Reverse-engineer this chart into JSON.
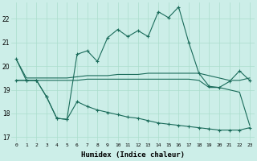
{
  "xlabel": "Humidex (Indice chaleur)",
  "bg_color": "#cceee8",
  "grid_color": "#aaddcc",
  "line_color": "#1a6b5a",
  "xlim": [
    -0.5,
    23.5
  ],
  "ylim": [
    16.8,
    22.7
  ],
  "yticks": [
    17,
    18,
    19,
    20,
    21,
    22
  ],
  "xticks": [
    0,
    1,
    2,
    3,
    4,
    5,
    6,
    7,
    8,
    9,
    10,
    11,
    12,
    13,
    14,
    15,
    16,
    17,
    18,
    19,
    20,
    21,
    22,
    23
  ],
  "line1_x": [
    0,
    1,
    2,
    3,
    4,
    5,
    6,
    7,
    8,
    9,
    10,
    11,
    12,
    13,
    14,
    15,
    16,
    17,
    18,
    19,
    20,
    21,
    22,
    23
  ],
  "line1_y": [
    20.3,
    19.4,
    19.4,
    18.7,
    17.8,
    17.75,
    20.5,
    20.65,
    20.2,
    21.2,
    21.55,
    21.25,
    21.5,
    21.25,
    22.3,
    22.05,
    22.5,
    21.0,
    19.7,
    19.15,
    19.1,
    19.35,
    19.8,
    19.4
  ],
  "line2_x": [
    0,
    1,
    2,
    3,
    4,
    5,
    6,
    7,
    8,
    9,
    10,
    11,
    12,
    13,
    14,
    15,
    16,
    17,
    18,
    19,
    20,
    21,
    22,
    23
  ],
  "line2_y": [
    20.3,
    19.5,
    19.5,
    19.5,
    19.5,
    19.5,
    19.55,
    19.6,
    19.6,
    19.6,
    19.65,
    19.65,
    19.65,
    19.7,
    19.7,
    19.7,
    19.7,
    19.7,
    19.7,
    19.6,
    19.5,
    19.4,
    19.4,
    19.5
  ],
  "line3_x": [
    0,
    1,
    2,
    3,
    4,
    5,
    6,
    7,
    8,
    9,
    10,
    11,
    12,
    13,
    14,
    15,
    16,
    17,
    18,
    19,
    20,
    21,
    22,
    23
  ],
  "line3_y": [
    19.4,
    19.4,
    19.4,
    19.4,
    19.4,
    19.4,
    19.4,
    19.45,
    19.45,
    19.45,
    19.45,
    19.45,
    19.45,
    19.45,
    19.45,
    19.45,
    19.45,
    19.45,
    19.4,
    19.1,
    19.1,
    19.0,
    18.9,
    17.5
  ],
  "line4_x": [
    0,
    1,
    2,
    3,
    4,
    5,
    6,
    7,
    8,
    9,
    10,
    11,
    12,
    13,
    14,
    15,
    16,
    17,
    18,
    19,
    20,
    21,
    22,
    23
  ],
  "line4_y": [
    19.4,
    19.4,
    19.4,
    18.7,
    17.8,
    17.75,
    18.5,
    18.3,
    18.15,
    18.05,
    17.95,
    17.85,
    17.8,
    17.7,
    17.6,
    17.55,
    17.5,
    17.45,
    17.4,
    17.35,
    17.3,
    17.3,
    17.3,
    17.4
  ]
}
